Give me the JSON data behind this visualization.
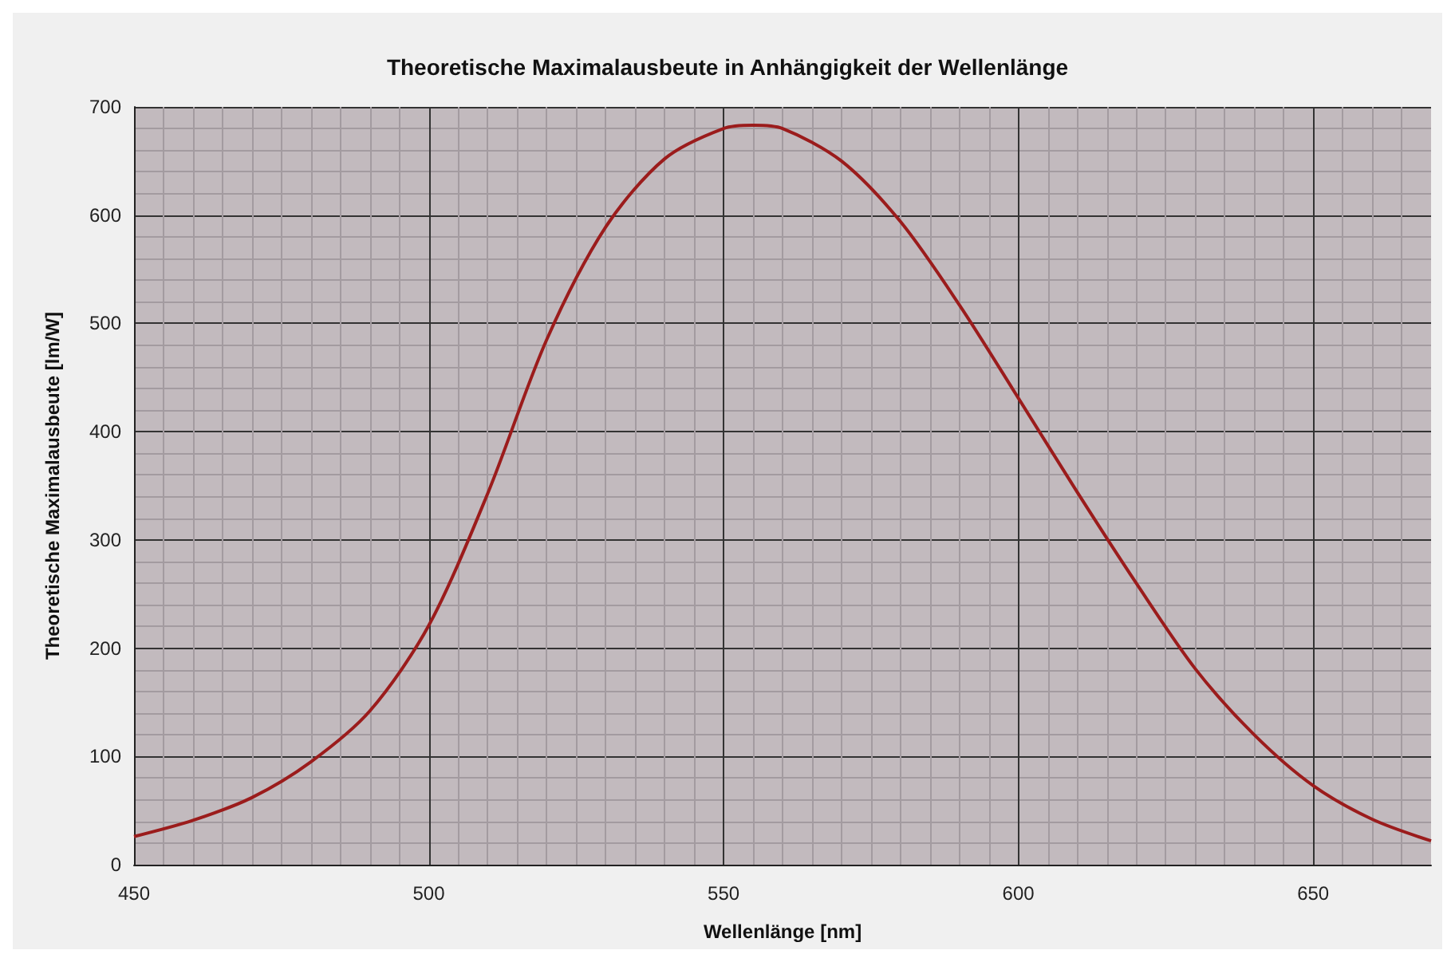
{
  "chart_data": {
    "type": "line",
    "title": "Theoretische Maximalausbeute in Anhängigkeit der Wellenlänge",
    "xlabel": "Wellenlänge [nm]",
    "ylabel": "Theoretische Maximalausbeute [lm/W]",
    "series": [
      {
        "color": "#9b1c1c",
        "x": [
          450,
          460,
          470,
          480,
          490,
          500,
          510,
          520,
          530,
          540,
          550,
          555,
          560,
          570,
          580,
          590,
          600,
          610,
          620,
          630,
          640,
          650,
          660,
          670
        ],
        "values": [
          26,
          41,
          62,
          95,
          142,
          221,
          343,
          485,
          589,
          652,
          680,
          683,
          680,
          650,
          594,
          517,
          431,
          344,
          260,
          181,
          120,
          73,
          42,
          22
        ]
      }
    ],
    "xlim": [
      450,
      670
    ],
    "xticks": [
      450,
      500,
      550,
      600,
      650
    ],
    "ylim": [
      0,
      700
    ],
    "yticks": [
      0,
      100,
      200,
      300,
      400,
      500,
      600,
      700
    ],
    "grid": true,
    "marker": "none",
    "line_style": "solid"
  }
}
